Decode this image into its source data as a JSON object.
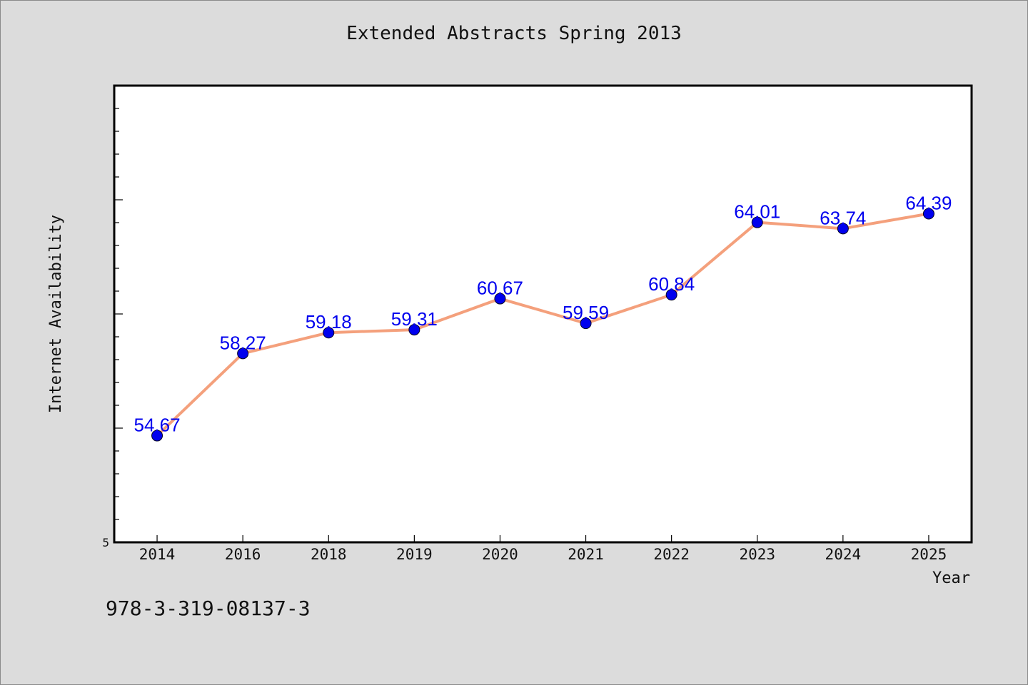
{
  "chart_data": {
    "type": "line",
    "title": "Extended Abstracts Spring 2013",
    "xlabel": "Year",
    "ylabel": "Internet Availability",
    "categories": [
      "2014",
      "2016",
      "2018",
      "2019",
      "2020",
      "2021",
      "2022",
      "2023",
      "2024",
      "2025"
    ],
    "series": [
      {
        "values": [
          54.67,
          58.27,
          59.18,
          59.31,
          60.67,
          59.59,
          60.84,
          64.01,
          63.74,
          64.39
        ]
      }
    ],
    "data_labels": [
      "54.67",
      "58.27",
      "59.18",
      "59.31",
      "60.67",
      "59.59",
      "60.84",
      "64.01",
      "63.74",
      "64.39"
    ],
    "y_tick_labels": [
      "5"
    ],
    "ylim": [
      50,
      70
    ],
    "grid": false,
    "line_color": "#f4a07c",
    "marker_color": "#0000ee",
    "label_color": "#0000ee",
    "plot_background": "#ffffff"
  },
  "footer_note": "978-3-319-08137-3"
}
